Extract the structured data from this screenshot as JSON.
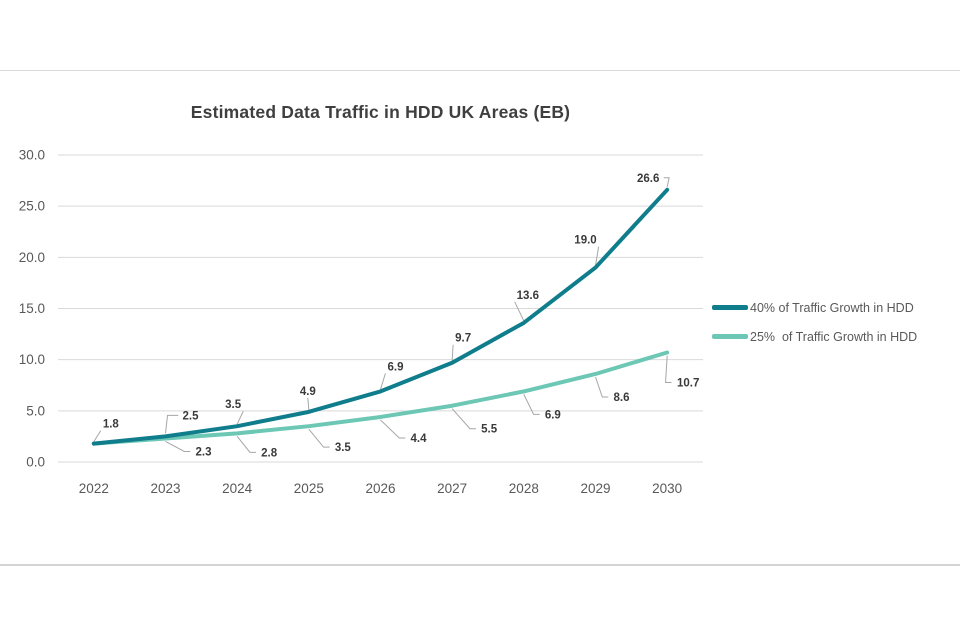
{
  "chart_data": {
    "type": "line",
    "title": "Estimated Data Traffic in HDD UK Areas (EB)",
    "categories": [
      "2022",
      "2023",
      "2024",
      "2025",
      "2026",
      "2027",
      "2028",
      "2029",
      "2030"
    ],
    "series": [
      {
        "name": "40% of Traffic Growth in HDD",
        "color": "#0f7d8c",
        "values": [
          1.8,
          2.5,
          3.5,
          4.9,
          6.9,
          9.7,
          13.6,
          19.0,
          26.6
        ],
        "labels": [
          "1.8",
          "2.5",
          "3.5",
          "4.9",
          "6.9",
          "9.7",
          "13.6",
          "19.0",
          "26.6"
        ]
      },
      {
        "name": "25%  of Traffic Growth in HDD",
        "color": "#6cc7b4",
        "values": [
          1.8,
          2.3,
          2.8,
          3.5,
          4.4,
          5.5,
          6.9,
          8.6,
          10.7
        ],
        "labels": [
          null,
          "2.3",
          "2.8",
          "3.5",
          "4.4",
          "5.5",
          "6.9",
          "8.6",
          "10.7"
        ]
      }
    ],
    "xlabel": "",
    "ylabel": "",
    "y_axis": {
      "min": 0,
      "max": 30,
      "tick_interval": 5,
      "tick_labels": [
        "0.0",
        "5.0",
        "10.0",
        "15.0",
        "20.0",
        "25.0",
        "30.0"
      ]
    },
    "grid": true,
    "legend_position": "right",
    "colors": {
      "grid": "#d9d9d9",
      "leader": "#a6a6a6",
      "axis_text": "#595959",
      "title_text": "#3f3f3f",
      "data_label_text": "#3a3a3a"
    }
  }
}
